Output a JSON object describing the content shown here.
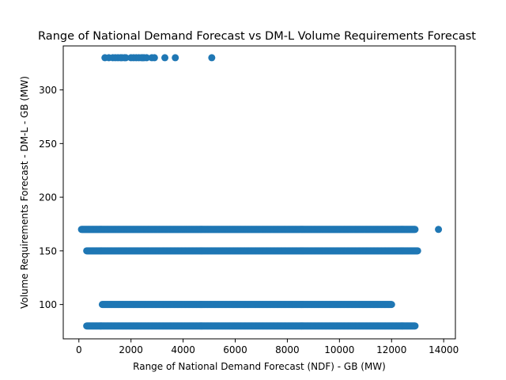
{
  "chart_data": {
    "type": "scatter",
    "title": "Range of National Demand Forecast vs DM-L Volume Requirements Forecast",
    "xlabel": "Range of National Demand Forecast (NDF) - GB (MW)",
    "ylabel": "Volume Requirements Forecast - DM-L - GB (MW)",
    "xlim": [
      -600,
      14450
    ],
    "ylim": [
      68,
      341
    ],
    "xticks": [
      0,
      2000,
      4000,
      6000,
      8000,
      10000,
      12000,
      14000
    ],
    "yticks": [
      100,
      150,
      200,
      250,
      300
    ],
    "grid": false,
    "legend": "none",
    "marker_color": "#1f77b4",
    "series": [
      {
        "bands": [
          {
            "y": 330,
            "x": [
              1000,
              1150,
              1300,
              1400,
              1500,
              1600,
              1650,
              1750,
              1800,
              2000,
              2100,
              2200,
              2300,
              2400,
              2450,
              2500,
              2600,
              2800,
              2900,
              3300,
              3700,
              5100
            ]
          },
          {
            "y": 170,
            "x_min": 100,
            "x_max": 12900,
            "x_extra": [
              13800
            ]
          },
          {
            "y": 150,
            "x_min": 300,
            "x_max": 13000
          },
          {
            "y": 100,
            "x_min": 900,
            "x_max": 12000
          },
          {
            "y": 80,
            "x_min": 300,
            "x_max": 12900
          }
        ]
      }
    ]
  }
}
